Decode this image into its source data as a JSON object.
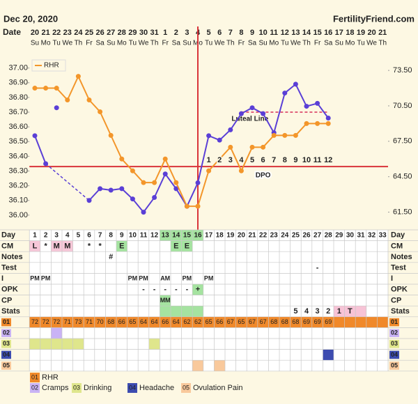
{
  "header": {
    "date": "Dec 20, 2020",
    "site": "FertilityFriend.com"
  },
  "chart_data": {
    "type": "line",
    "date_label": "Date",
    "categories": [
      "20",
      "21",
      "22",
      "23",
      "24",
      "25",
      "26",
      "27",
      "28",
      "29",
      "30",
      "31",
      "1",
      "2",
      "3",
      "4",
      "5",
      "6",
      "7",
      "8",
      "9",
      "10",
      "11",
      "12",
      "13",
      "14",
      "15",
      "16",
      "17",
      "18",
      "19",
      "20",
      "21"
    ],
    "weekdays": [
      "Su",
      "Mo",
      "Tu",
      "We",
      "Th",
      "Fr",
      "Sa",
      "Su",
      "Mo",
      "Tu",
      "We",
      "Th",
      "Fr",
      "Sa",
      "Su",
      "Mo",
      "Tu",
      "We",
      "Th",
      "Fr",
      "Sa",
      "Su",
      "Mo",
      "Tu",
      "We",
      "Th",
      "Fr",
      "Sa",
      "Su",
      "Mo",
      "Tu",
      "We",
      "Th"
    ],
    "ylim": [
      35.9,
      37.06
    ],
    "yticks": [
      {
        "value": 37.0,
        "label": "37.00"
      },
      {
        "value": 36.9,
        "label": "36.90"
      },
      {
        "value": 36.8,
        "label": "36.80"
      },
      {
        "value": 36.7,
        "label": "36.70"
      },
      {
        "value": 36.6,
        "label": "36.60"
      },
      {
        "value": 36.5,
        "label": "36.50"
      },
      {
        "value": 36.4,
        "label": "36.40"
      },
      {
        "value": 36.3,
        "label": "36.30"
      },
      {
        "value": 36.2,
        "label": "36.20"
      },
      {
        "value": 36.1,
        "label": "36.10"
      },
      {
        "value": 36.0,
        "label": "36.00"
      }
    ],
    "y2lim": [
      60,
      74.45
    ],
    "y2ticks": [
      {
        "value": 73.5,
        "label": "73.50"
      },
      {
        "value": 70.5,
        "label": "70.50"
      },
      {
        "value": 67.5,
        "label": "67.50"
      },
      {
        "value": 64.5,
        "label": "64.50"
      },
      {
        "value": 61.5,
        "label": "61.50"
      }
    ],
    "series": [
      {
        "color": "#5a3fd6",
        "values": [
          36.54,
          36.35,
          null,
          null,
          null,
          36.1,
          36.18,
          36.17,
          36.18,
          36.11,
          36.02,
          36.12,
          36.28,
          36.18,
          36.06,
          36.22,
          36.54,
          36.51,
          36.58,
          36.69,
          36.73,
          36.69,
          36.56,
          36.83,
          36.89,
          36.74,
          36.76,
          36.66,
          null,
          null,
          null,
          null,
          null
        ]
      },
      {
        "name": "RHR",
        "color": "#f3962a",
        "axis": "y2",
        "values": [
          72,
          72,
          72,
          71,
          73,
          71,
          70,
          68,
          66,
          65,
          64,
          64,
          66,
          64,
          62,
          62,
          65,
          66,
          67,
          65,
          67,
          67,
          68,
          68,
          68,
          69,
          69,
          69,
          null,
          null,
          null,
          null,
          null
        ]
      }
    ],
    "excluded_values": [
      null,
      null,
      36.73,
      null,
      null,
      null,
      null,
      null,
      null,
      null,
      null,
      null,
      null,
      null,
      null,
      null,
      null,
      null,
      null,
      null,
      null,
      null,
      null,
      null,
      null,
      null,
      null,
      null,
      null,
      null,
      null,
      null,
      null
    ],
    "coverline": 36.33,
    "marker_color": "#d9343a",
    "ovulation": 16,
    "dpo": [
      1,
      2,
      3,
      4,
      5,
      6,
      7,
      8,
      9,
      10,
      11,
      12
    ],
    "dpo_label": "DPO",
    "luteal_line": {
      "label": "Luteal Line",
      "value": 36.7,
      "from": 20,
      "to": 28,
      "color": "#e0607a"
    }
  },
  "table": {
    "day_label": "Day",
    "days": [
      1,
      2,
      3,
      4,
      5,
      6,
      7,
      8,
      9,
      10,
      11,
      12,
      13,
      14,
      15,
      16,
      17,
      18,
      19,
      20,
      21,
      22,
      23,
      24,
      25,
      26,
      27,
      28,
      29,
      30,
      31,
      32,
      33
    ],
    "day_highlight": {
      "from": 13,
      "to": 16,
      "color": "#a5e3a0"
    },
    "rows": [
      {
        "label": "CM",
        "cells": [
          {
            "day": 1,
            "text": "L",
            "color": "#f6c7d8"
          },
          {
            "day": 2,
            "text": "*"
          },
          {
            "day": 3,
            "text": "M",
            "color": "#f6c7d8"
          },
          {
            "day": 4,
            "text": "M",
            "color": "#f6c7d8"
          },
          {
            "day": 6,
            "text": "*"
          },
          {
            "day": 7,
            "text": "*"
          },
          {
            "day": 9,
            "text": "E",
            "color": "#a5e3a0"
          },
          {
            "day": 14,
            "text": "E",
            "color": "#a5e3a0"
          },
          {
            "day": 15,
            "text": "E",
            "color": "#a5e3a0"
          }
        ]
      },
      {
        "label": "Notes",
        "cells": [
          {
            "day": 8,
            "text": "#"
          }
        ]
      },
      {
        "label": "Test",
        "cells": [
          {
            "day": 27,
            "text": "-"
          }
        ]
      },
      {
        "label": "I",
        "cells": [
          {
            "day": 1,
            "text": "PM"
          },
          {
            "day": 2,
            "text": "PM"
          },
          {
            "day": 10,
            "text": "PM"
          },
          {
            "day": 11,
            "text": "PM"
          },
          {
            "day": 13,
            "text": "AM"
          },
          {
            "day": 15,
            "text": "PM"
          },
          {
            "day": 17,
            "text": "PM"
          }
        ]
      },
      {
        "label": "OPK",
        "cells": [
          {
            "day": 11,
            "text": "-"
          },
          {
            "day": 12,
            "text": "-"
          },
          {
            "day": 13,
            "text": "-"
          },
          {
            "day": 14,
            "text": "-"
          },
          {
            "day": 15,
            "text": "-"
          },
          {
            "day": 16,
            "text": "+",
            "color": "#a5e3a0"
          }
        ]
      },
      {
        "label": "CP",
        "cells": [
          {
            "day": 13,
            "text": "MM",
            "color": "#a5e3a0"
          }
        ]
      },
      {
        "label": "Stats",
        "cells": [
          {
            "day": 13,
            "color": "#a5e3a0"
          },
          {
            "day": 14,
            "color": "#a5e3a0"
          },
          {
            "day": 15,
            "color": "#a5e3a0"
          },
          {
            "day": 16,
            "color": "#a5e3a0"
          },
          {
            "day": 25,
            "text": "5"
          },
          {
            "day": 26,
            "text": "4"
          },
          {
            "day": 27,
            "text": "3"
          },
          {
            "day": 28,
            "text": "2"
          },
          {
            "day": 29,
            "text": "1",
            "color": "#f7c3d6"
          },
          {
            "day": 30,
            "text": "T",
            "color": "#f7c3d6"
          },
          {
            "day": 31,
            "color": "#f7c3d6"
          }
        ]
      }
    ],
    "symptoms": [
      {
        "code": "01",
        "name": "RHR",
        "color": "#f0892a",
        "cells": []
      },
      {
        "code": "02",
        "name": "Cramps",
        "color": "#c9b3f5",
        "cells": [
          3
        ]
      },
      {
        "code": "03",
        "name": "Drinking",
        "color": "#dfe68c",
        "cells": [
          1,
          2,
          3,
          4,
          5,
          12
        ]
      },
      {
        "code": "04",
        "name": "Headache",
        "color": "#3d4cb0",
        "cells": [
          28
        ]
      },
      {
        "code": "05",
        "name": "Ovulation Pain",
        "color": "#f9c99c",
        "cells": [
          16,
          18
        ]
      }
    ]
  }
}
